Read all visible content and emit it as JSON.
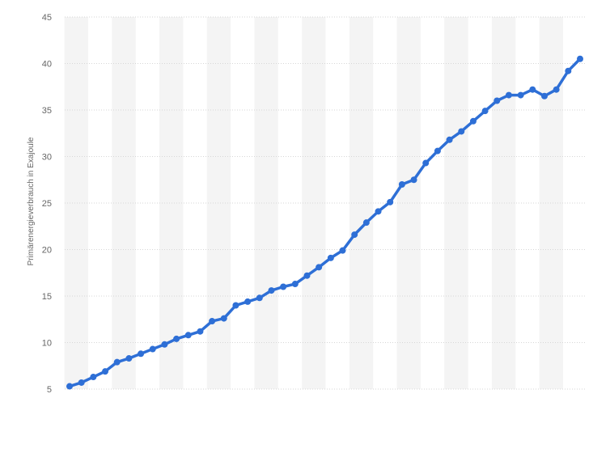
{
  "chart_data": {
    "type": "line",
    "title": "",
    "xlabel": "",
    "ylabel": "Primärenergieverbrauch in Exajoule",
    "ylim": [
      5,
      45
    ],
    "yticks": [
      5,
      10,
      15,
      20,
      25,
      30,
      35,
      40,
      45
    ],
    "grid": true,
    "legend": "none",
    "series": [
      {
        "values": [
          5.3,
          5.7,
          6.3,
          6.9,
          7.9,
          8.3,
          8.8,
          9.3,
          9.8,
          10.4,
          10.8,
          11.2,
          12.3,
          12.6,
          14.0,
          14.4,
          14.8,
          15.6,
          16.0,
          16.3,
          17.2,
          18.1,
          19.1,
          19.9,
          21.6,
          22.9,
          24.1,
          25.1,
          27.0,
          27.5,
          29.3,
          30.6,
          31.8,
          32.7,
          33.8,
          34.9,
          36.0,
          36.6,
          36.6,
          37.2,
          36.5,
          37.2,
          39.2,
          40.5
        ]
      }
    ],
    "colors": {
      "line": "#2e6fd6",
      "band": "#f4f4f4",
      "grid": "#d6d6d6",
      "axis_text": "#666666"
    }
  }
}
